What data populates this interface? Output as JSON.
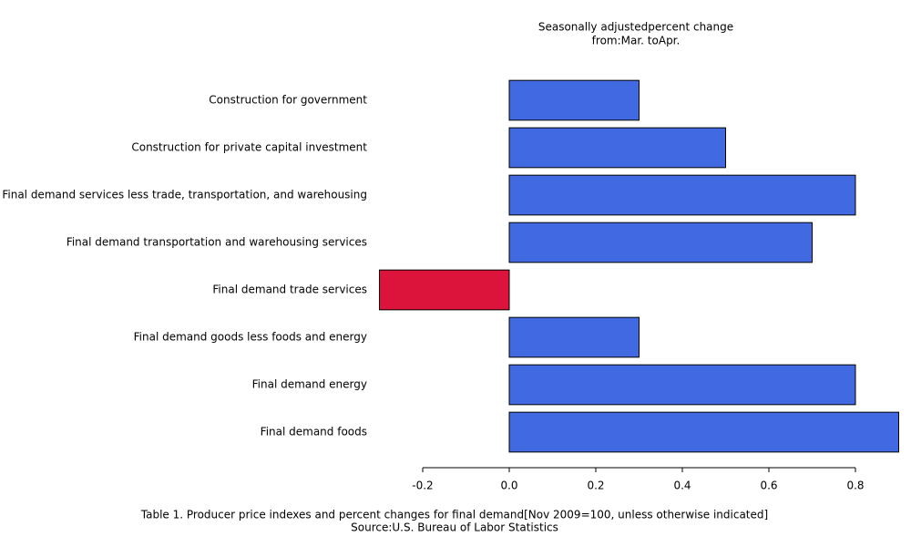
{
  "chart_data": {
    "type": "hbar",
    "title": "Seasonally adjustedpercent change",
    "subtitle": "from:Mar. toApr.",
    "caption": "Table 1. Producer price indexes and percent changes for final demand[Nov 2009=100, unless otherwise indicated]",
    "source": "Source:U.S. Bureau of Labor Statistics",
    "categories": [
      "Construction for government",
      "Construction for private capital investment",
      "Final demand services less trade, transportation, and warehousing",
      "Final demand transportation and warehousing services",
      "Final demand trade services",
      "Final demand goods less foods and energy",
      "Final demand energy",
      "Final demand foods"
    ],
    "values": [
      0.3,
      0.5,
      0.8,
      0.7,
      -0.3,
      0.3,
      0.8,
      0.9
    ],
    "colors": [
      "#4169e1",
      "#4169e1",
      "#4169e1",
      "#4169e1",
      "#dc143c",
      "#4169e1",
      "#4169e1",
      "#4169e1"
    ],
    "xlim": [
      -0.3,
      0.9
    ],
    "xticks": [
      -0.2,
      {
        "value": 0,
        "label": "0.0"
      },
      0.2,
      0.4,
      0.6,
      0.8
    ]
  }
}
